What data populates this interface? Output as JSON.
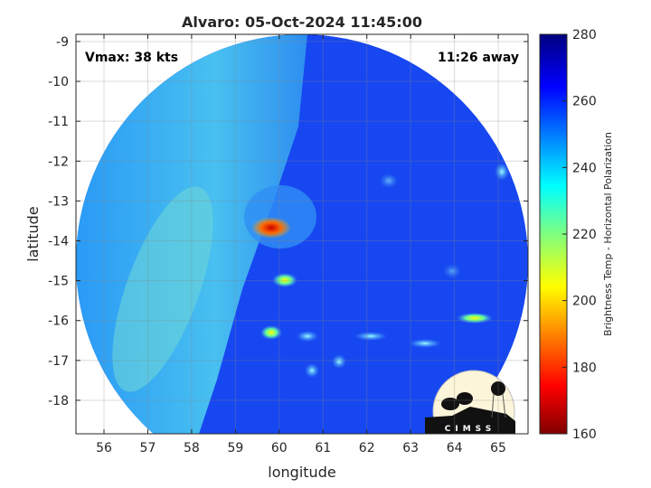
{
  "chart_data": {
    "type": "heatmap",
    "title": "Alvaro: 05-Oct-2024 11:45:00",
    "xlabel": "longitude",
    "ylabel": "latitude",
    "xlim": [
      55.36,
      65.68
    ],
    "ylim": [
      -18.84,
      -8.82
    ],
    "xticks": [
      56,
      57,
      58,
      59,
      60,
      61,
      62,
      63,
      64,
      65
    ],
    "yticks": [
      -9,
      -10,
      -11,
      -12,
      -13,
      -14,
      -15,
      -16,
      -17,
      -18
    ],
    "grid": true,
    "annotations": {
      "left": "Vmax: 38 kts",
      "right": "11:26 away"
    },
    "colorbar": {
      "label": "Brightness Temp - Horizontal Polarization",
      "range": [
        160,
        280
      ],
      "ticks": [
        160,
        180,
        200,
        220,
        240,
        260,
        280
      ],
      "colormap": "jet"
    },
    "features": [
      {
        "name": "storm core",
        "lon": 60.0,
        "lat": -13.8,
        "value": 175
      },
      {
        "name": "rainband",
        "lon": 62.5,
        "lat": -16.3,
        "value": 235
      }
    ],
    "logo": "CIMSS"
  }
}
